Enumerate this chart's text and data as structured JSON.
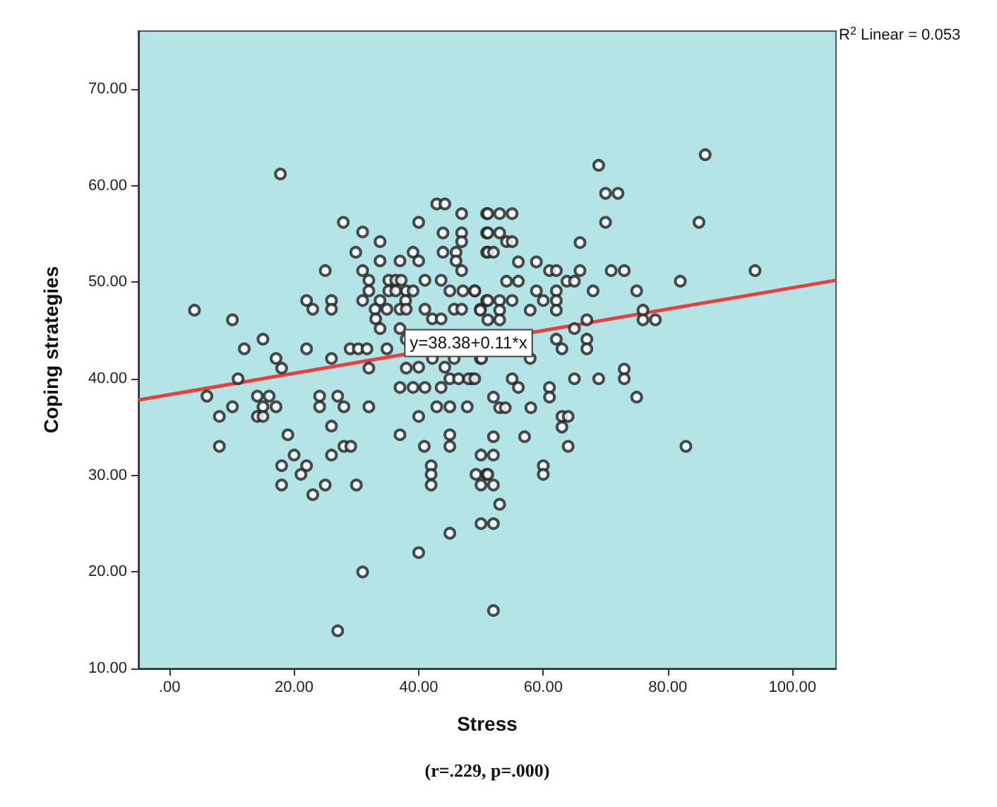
{
  "chart_data": {
    "type": "scatter",
    "xlabel": "Stress",
    "ylabel": "Coping strategies",
    "xlim": [
      -5,
      107
    ],
    "ylim": [
      10,
      76
    ],
    "xticks": [
      {
        "value": 0,
        "label": ".00"
      },
      {
        "value": 20,
        "label": "20.00"
      },
      {
        "value": 40,
        "label": "40.00"
      },
      {
        "value": 60,
        "label": "60.00"
      },
      {
        "value": 80,
        "label": "80.00"
      },
      {
        "value": 100,
        "label": "100.00"
      }
    ],
    "yticks": [
      {
        "value": 10,
        "label": "10.00"
      },
      {
        "value": 20,
        "label": "20.00"
      },
      {
        "value": 30,
        "label": "30.00"
      },
      {
        "value": 40,
        "label": "40.00"
      },
      {
        "value": 50,
        "label": "50.00"
      },
      {
        "value": 60,
        "label": "60.00"
      },
      {
        "value": 70,
        "label": "70.00"
      }
    ],
    "grid": false,
    "marker": "circle",
    "series": [
      {
        "color": "#222222",
        "x": [
          17.8,
          42.9,
          44.2,
          46.9,
          50.9,
          27.9,
          40.0,
          31.0,
          33.8,
          43.9,
          46.9,
          46.9,
          50.9,
          29.9,
          33.8,
          37.0,
          39.1,
          40.0,
          43.9,
          46.0,
          46.0,
          46.9,
          50.9,
          25.0,
          31.0,
          32.0,
          32.0,
          35.2,
          36.3,
          37.2,
          41.0,
          43.6,
          35.2,
          36.3,
          38.0,
          39.1,
          45.0,
          47.1,
          49.0,
          22.0,
          23.0,
          26.0,
          26.0,
          31.0,
          33.8,
          37.9,
          33.0,
          34.9,
          37.0,
          38.0,
          41.0,
          42.2,
          43.6,
          45.7,
          46.9,
          49.9,
          50.9,
          4.0,
          10.1,
          33.1,
          33.8,
          37.0,
          38.0,
          12.0,
          15.0,
          22.0,
          26.0,
          29.0,
          30.3,
          31.7,
          34.9,
          17.1,
          18.0,
          32.0,
          38.0,
          11.0,
          6.0,
          10.1,
          8.0,
          14.1,
          16.0,
          15.0,
          17.1,
          14.1,
          15.0,
          24.1,
          24.1,
          27.0,
          28.0,
          32.0,
          40.0,
          37.0,
          39.1,
          41.0,
          43.6,
          45.0,
          46.4,
          48.5,
          42.9,
          45.0,
          47.8,
          40.0,
          42.2,
          44.2,
          45.7,
          19.0,
          26.0,
          37.0,
          45.0,
          49.9,
          8.0,
          40.9,
          45.0,
          28.0,
          29.1,
          18.0,
          20.0,
          22.0,
          21.1,
          18.0,
          23.0,
          25.0,
          30.0,
          26.0,
          42.0,
          42.0,
          42.0,
          50.0,
          49.2,
          50.9,
          50.0,
          52.0,
          52.0,
          50.0,
          52.0,
          45.0,
          40.0,
          31.0,
          52.0,
          27.0,
          53.0,
          53.9,
          58.0,
          63.0,
          64.0,
          63.0,
          52.0,
          57.0,
          64.0,
          82.9,
          51.1,
          60.0,
          60.0,
          53.0,
          86.0,
          68.9,
          70.0,
          72.0,
          70.0,
          85.0,
          51.1,
          53.0,
          55.0,
          51.1,
          53.0,
          54.1,
          55.0,
          51.1,
          52.0,
          65.9,
          56.0,
          58.9,
          61.0,
          62.1,
          63.8,
          65.0,
          65.9,
          70.9,
          73.0,
          82.0,
          94.0,
          54.1,
          56.0,
          49.0,
          51.1,
          53.0,
          55.0,
          58.9,
          60.0,
          62.1,
          62.1,
          62.1,
          68.0,
          75.0,
          57.9,
          49.9,
          51.1,
          53.0,
          53.0,
          76.0,
          76.0,
          78.0,
          67.0,
          65.0,
          62.1,
          63.0,
          67.0,
          67.0,
          50.1,
          57.9,
          48.0,
          49.0,
          55.0,
          56.0,
          65.0,
          68.9,
          73.0,
          73.0,
          75.0,
          61.0,
          61.0,
          52.0
        ],
        "values": [
          61.2,
          58.1,
          58.1,
          57.1,
          57.1,
          56.2,
          56.2,
          55.2,
          54.2,
          55.1,
          55.1,
          54.2,
          55.1,
          53.1,
          52.2,
          52.2,
          53.1,
          52.2,
          53.1,
          53.1,
          52.2,
          51.2,
          53.1,
          51.2,
          51.2,
          50.2,
          49.1,
          50.2,
          50.2,
          50.2,
          50.2,
          50.2,
          49.1,
          49.1,
          49.1,
          49.1,
          49.1,
          49.1,
          49.1,
          48.1,
          47.2,
          48.1,
          47.2,
          48.1,
          48.1,
          48.1,
          47.2,
          47.2,
          47.2,
          47.2,
          47.2,
          46.2,
          46.2,
          47.2,
          47.2,
          47.2,
          48.1,
          47.1,
          46.1,
          46.2,
          45.2,
          45.2,
          44.1,
          43.1,
          44.1,
          43.1,
          42.1,
          43.1,
          43.1,
          43.1,
          43.1,
          42.1,
          41.1,
          41.1,
          41.1,
          40.0,
          38.2,
          37.1,
          36.1,
          38.2,
          38.2,
          37.1,
          37.1,
          36.1,
          36.1,
          38.2,
          37.1,
          38.2,
          37.1,
          37.1,
          36.1,
          39.1,
          39.1,
          39.1,
          39.1,
          40.0,
          40.0,
          40.0,
          37.1,
          37.1,
          37.1,
          41.2,
          42.1,
          41.2,
          42.1,
          34.2,
          35.1,
          34.2,
          34.2,
          42.1,
          33.0,
          33.0,
          33.0,
          33.0,
          33.0,
          31.0,
          32.1,
          31.0,
          30.1,
          29.0,
          28.0,
          29.0,
          29.0,
          32.1,
          31.0,
          30.1,
          29.0,
          32.1,
          30.1,
          30.1,
          29.0,
          32.1,
          29.0,
          25.0,
          25.0,
          24.0,
          22.0,
          20.0,
          16.0,
          13.9,
          37.0,
          37.0,
          37.0,
          36.1,
          36.1,
          35.0,
          34.0,
          34.0,
          33.0,
          33.0,
          30.1,
          31.0,
          30.1,
          27.0,
          63.2,
          62.1,
          59.2,
          59.2,
          56.2,
          56.2,
          57.1,
          57.1,
          57.1,
          55.1,
          55.1,
          54.2,
          54.2,
          53.1,
          53.1,
          54.1,
          52.1,
          52.1,
          51.2,
          51.2,
          50.1,
          50.1,
          51.2,
          51.2,
          51.2,
          50.1,
          51.2,
          50.1,
          50.1,
          49.1,
          48.1,
          48.1,
          48.1,
          49.1,
          48.1,
          49.1,
          48.1,
          47.1,
          49.1,
          49.1,
          47.1,
          47.1,
          46.1,
          47.1,
          46.1,
          47.1,
          46.1,
          46.1,
          46.1,
          45.2,
          44.1,
          43.1,
          44.1,
          43.1,
          42.1,
          42.1,
          40.0,
          40.0,
          40.0,
          39.1,
          40.0,
          40.0,
          41.0,
          40.0,
          38.1,
          39.1,
          38.1,
          38.1
        ]
      },
      {
        "type": "line",
        "color": "#e8413c",
        "x": [
          -5,
          107
        ],
        "values": [
          37.8,
          50.2
        ],
        "line_style": "solid",
        "marker": "none"
      }
    ],
    "annotations": [
      "R$^{2}$ Linear = 0.053",
      {
        "text": "y=38.38+0.11*x",
        "x": 48,
        "y": 43.7
      },
      "(r=.229, p=.000)"
    ]
  }
}
